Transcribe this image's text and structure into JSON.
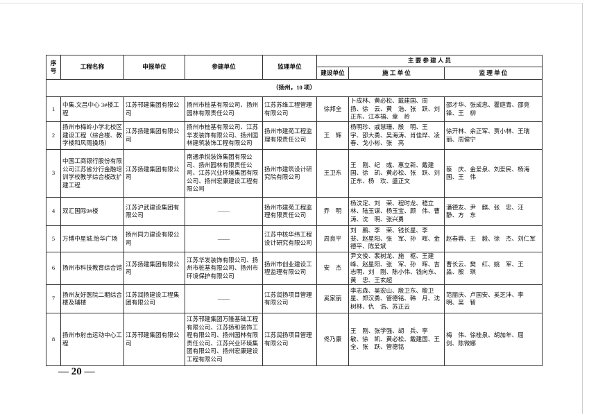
{
  "table": {
    "header": [
      "序号",
      "工程名称",
      "申报单位",
      "参建单位",
      "监理单位",
      "主 要 参 建 人 员",
      "建设单位",
      "施 工 单 位",
      "监 理 单 位"
    ],
    "section": "（扬州，10 项）",
    "rows": [
      [
        "1",
        "中集.文昌中心 3#楼工程",
        "江苏邗建集团有限公司",
        "扬州市桩基有限公司、扬州园林有限责任公司",
        "江苏苏维工程管理有限公司",
        "徐邦全",
        "卜成林、黄必松、戴建国、周　扬、徐　云、黄　浩、张　跃、刘正东、江本福、章　岭",
        "邵才华、张成忠、瞿庭青、邵竞锋、王　柳"
      ],
      [
        "2",
        "扬州市梅岭小学北校区建设工程（综合楼、教学楼和风雨操场）",
        "江苏扬建集团有限公司",
        "扬州市桩基有限公司、江苏华发装饰有限公司、扬州园林建筑装饰工程有限公司",
        "扬州市建苑工程监理有限责任公司",
        "王　辉",
        "杨明珍、戚慧珊、殷　明、王　宇、邵大勇、吴海涛、肖佳烨、凌　春、戈小彬、张　亮",
        "徐开林、余正军、贾小林、王瑞丽、周健宁"
      ],
      [
        "3",
        "中国工商银行股份有限公司江苏省分行金融培训学校教学综合楼改扩建工程",
        "江苏扬建集团有限公司",
        "南通承悦装饰集团有限公司、扬州园林有限责任公司、江苏兴业环境集团有限公司、扬州宏康建设工程有限公司",
        "扬州市建筑设计研究院有限公司",
        "王卫东",
        "王　刚、纪　彧、惠立新、戴建国、徐　凯、黄必松、张　跃、刘正东、杨　欢、盛正文",
        "蔡　庆、金爱泉、刘爱民、杨海国、王　伟"
      ],
      [
        "4",
        "双汇国际9#楼",
        "江苏沪武建设集团有限公司",
        "——",
        "扬州市建苑工程监理有限责任公司",
        "乔　明",
        "杨汶定、刘　荣、程时龙、嵇立林、陆玉谋、杨玉宝、顾　伟、曹　涛、沈　明、张兴勇",
        "潘德友、尹　麒、张　忠、汪　静、方　东"
      ],
      [
        "5",
        "万博中星城.怡华广场",
        "扬州同力建设有限公司",
        "——",
        "江苏中核华纬工程设计研究有限公司",
        "周良平",
        "刘　鹏、李　荣、钱长星、李　斐、赵星阳、张　军、孙　晖、金德平、陈爱斌",
        "赵春蓉、王　毅、徐　杰、刘仁军"
      ],
      [
        "6",
        "扬州市科技教育综合馆",
        "江苏扬建集团有限公司",
        "江苏华发装饰有限公司、扬州市桩基有限公司、扬州市环境保护有限公司",
        "扬州市创业建设工程监理有限公司",
        "安　杰",
        "尹文俊、裴树龙、施　枢、王建峰、赵星阳、张　军、孙　晖、吉志明、刘　刚、陈小伟、钱向东、黄　忠、王玄超",
        "曹长云、樊　红、姚　军、王　淼、殷　琪"
      ],
      [
        "7",
        "扬州友好医院二期综合楼及辅楼",
        "江苏润扬建设工程集团有限公司",
        "——",
        "江苏润扬项目管理有限公司",
        "奚家丽",
        "李志森、吴宏山、殷卫东、殷卫星、郑汉勇、管德铭、韩　月、沈树林、仇　浩、苏正云",
        "范丽庆、卢国安、奚芝沣、李　明、吴　智"
      ],
      [
        "8",
        "扬州市射击运动中心工程",
        "江苏邗建集团有限公司",
        "江苏邗建集团万隆基础工程有限公司、江苏扬和装饰工程有限公司、扬州园林有限责任公司、江苏兴业环境集团有限公司、扬州宏康建设工程有限公司",
        "江苏润扬项目管理有限公司",
        "佟乃康",
        "王　刚、张学强、胡　兵、李　敏、徐　凯、黄必松、戴建国、王　全、张　跃、管德铭",
        "梅　伟、徐桂泉、胡加年、屈　剑、陈微娜"
      ]
    ]
  },
  "page_number": "— 20 —"
}
